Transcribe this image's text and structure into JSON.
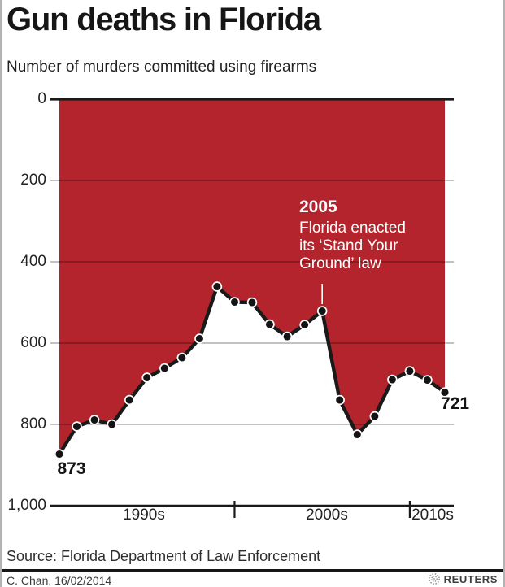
{
  "header": {
    "title": "Gun deaths in Florida",
    "subtitle": "Number of murders committed using firearms"
  },
  "chart_data": {
    "type": "area",
    "title": "Gun deaths in Florida",
    "xlabel": "",
    "ylabel": "Number of murders committed using firearms",
    "x": [
      1990,
      1991,
      1992,
      1993,
      1994,
      1995,
      1996,
      1997,
      1998,
      1999,
      2000,
      2001,
      2002,
      2003,
      2004,
      2005,
      2006,
      2007,
      2008,
      2009,
      2010,
      2011,
      2012
    ],
    "values": [
      873,
      805,
      789,
      800,
      740,
      685,
      662,
      636,
      589,
      461,
      499,
      500,
      554,
      584,
      555,
      521,
      740,
      825,
      780,
      690,
      669,
      691,
      721
    ],
    "ylim": [
      0,
      1000
    ],
    "y_axis_inverted": true,
    "ytick_values": [
      0,
      200,
      400,
      600,
      800,
      1000
    ],
    "ytick_labels": [
      "0",
      "200",
      "400",
      "600",
      "800",
      "1,000"
    ],
    "xtick_labels": [
      "1990s",
      "2000s",
      "2010s"
    ],
    "decade_tick_years": [
      2000,
      2010
    ],
    "grid": "on",
    "first_point_label": "873",
    "last_point_label": "721",
    "colors": {
      "area": "#b4242c",
      "line": "#1a1a1a",
      "dot": "#141414",
      "dot_ring": "#ffffff",
      "grid": "rgba(0,0,0,0.32)",
      "axis": "#1a1a1a",
      "annotation_text": "#ffffff"
    }
  },
  "annotation": {
    "year": "2005",
    "lines": [
      "Florida enacted",
      "its ‘Stand Your",
      "Ground’ law"
    ],
    "target_year": 2005
  },
  "footer": {
    "source": "Source: Florida Department of Law Enforcement",
    "credit": "C. Chan, 16/02/2014",
    "brand": "REUTERS"
  }
}
